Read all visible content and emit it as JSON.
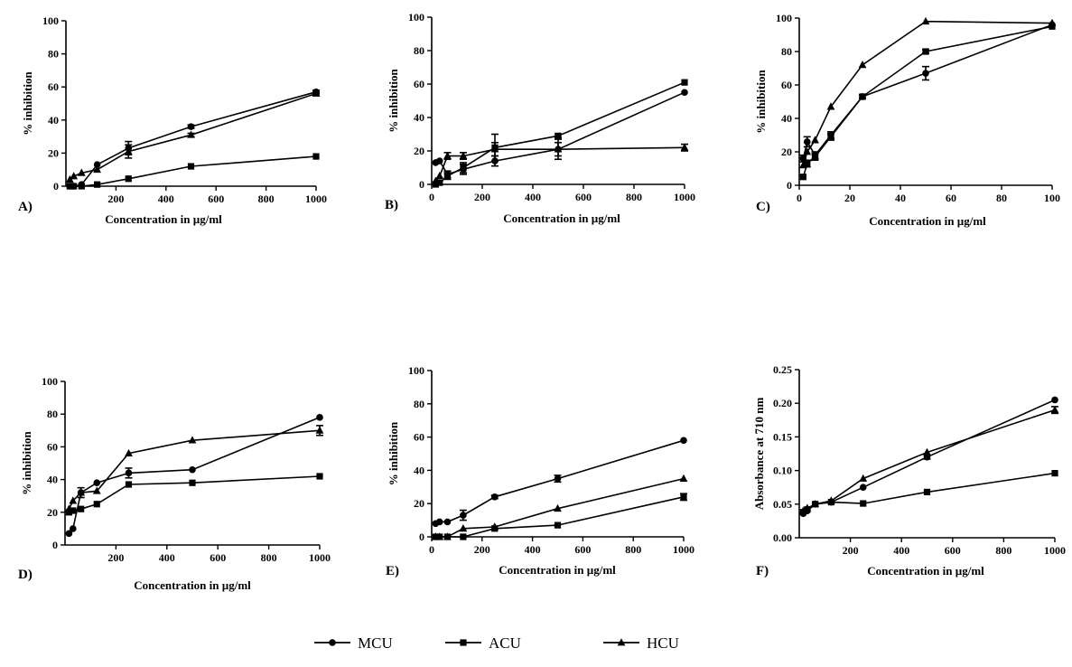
{
  "figure": {
    "legend": [
      {
        "name": "MCU",
        "marker": "circle"
      },
      {
        "name": "ACU",
        "marker": "square"
      },
      {
        "name": "HCU",
        "marker": "triangle"
      }
    ],
    "legend_position": "bottom-center",
    "colors": {
      "line": "#000000",
      "background": "#ffffff"
    }
  },
  "chart_data": [
    {
      "panel": "A)",
      "type": "line",
      "xlabel": "Concentration in µg/ml",
      "ylabel": "% inhibition",
      "xlim": [
        0,
        1000
      ],
      "ylim": [
        0,
        100
      ],
      "xticks": [
        200,
        400,
        600,
        800,
        1000
      ],
      "yticks": [
        0,
        20,
        40,
        60,
        80,
        100
      ],
      "grid": false,
      "series": [
        {
          "name": "MCU",
          "marker": "circle",
          "x": [
            15.6,
            31.25,
            62.5,
            125,
            250,
            500,
            1000
          ],
          "y": [
            0,
            0,
            1,
            13,
            23,
            36,
            57
          ],
          "err": [
            0,
            0,
            0,
            0,
            4,
            1,
            1
          ]
        },
        {
          "name": "ACU",
          "marker": "square",
          "x": [
            15.6,
            31.25,
            62.5,
            125,
            250,
            500,
            1000
          ],
          "y": [
            0,
            0,
            0,
            1,
            4.5,
            12,
            18
          ],
          "err": [
            0,
            0,
            0,
            0,
            0,
            0,
            0
          ]
        },
        {
          "name": "HCU",
          "marker": "triangle",
          "x": [
            15.6,
            31.25,
            62.5,
            125,
            250,
            500,
            1000
          ],
          "y": [
            4,
            6,
            8,
            10,
            21,
            31,
            56
          ],
          "err": [
            0,
            0,
            0,
            0,
            4,
            1,
            1
          ]
        }
      ]
    },
    {
      "panel": "B)",
      "type": "line",
      "xlabel": "Concentration in µg/ml",
      "ylabel": "% inhibition",
      "xlim": [
        0,
        1000
      ],
      "ylim": [
        0,
        100
      ],
      "xticks": [
        0,
        200,
        400,
        600,
        800,
        1000
      ],
      "yticks": [
        0,
        20,
        40,
        60,
        80,
        100
      ],
      "grid": false,
      "series": [
        {
          "name": "MCU",
          "marker": "circle",
          "x": [
            15.6,
            31.25,
            62.5,
            125,
            250,
            500,
            1000
          ],
          "y": [
            13,
            14,
            6,
            9,
            14,
            21,
            55
          ],
          "err": [
            0,
            0,
            2,
            3,
            3,
            4,
            0
          ]
        },
        {
          "name": "ACU",
          "marker": "square",
          "x": [
            15.6,
            31.25,
            62.5,
            125,
            250,
            500,
            1000
          ],
          "y": [
            0,
            1,
            5,
            10,
            22,
            29,
            61
          ],
          "err": [
            0,
            1,
            2,
            3,
            8,
            1,
            0
          ]
        },
        {
          "name": "HCU",
          "marker": "triangle",
          "x": [
            15.6,
            31.25,
            62.5,
            125,
            250,
            500,
            1000
          ],
          "y": [
            2,
            5,
            17,
            17,
            21,
            21,
            22
          ],
          "err": [
            0,
            0,
            2,
            2,
            4,
            6,
            2
          ]
        }
      ]
    },
    {
      "panel": "C)",
      "type": "line",
      "xlabel": "Concentration in µg/ml",
      "ylabel": "% inhibition",
      "xlim": [
        0,
        100
      ],
      "ylim": [
        0,
        100
      ],
      "xticks": [
        0,
        20,
        40,
        60,
        80,
        100
      ],
      "yticks": [
        0,
        20,
        40,
        60,
        80,
        100
      ],
      "grid": false,
      "series": [
        {
          "name": "MCU",
          "marker": "circle",
          "x": [
            1.56,
            3.125,
            6.25,
            12.5,
            25,
            50,
            100
          ],
          "y": [
            16,
            26,
            18,
            30,
            53,
            67,
            96
          ],
          "err": [
            2,
            3,
            2,
            2,
            1,
            4,
            0
          ]
        },
        {
          "name": "ACU",
          "marker": "square",
          "x": [
            1.56,
            3.125,
            6.25,
            12.5,
            25,
            50,
            100
          ],
          "y": [
            5,
            13,
            17,
            29,
            53,
            80,
            95
          ],
          "err": [
            0,
            2,
            2,
            2,
            1,
            1,
            0
          ]
        },
        {
          "name": "HCU",
          "marker": "triangle",
          "x": [
            1.56,
            3.125,
            6.25,
            12.5,
            25,
            50,
            100
          ],
          "y": [
            12,
            20,
            27,
            47,
            72,
            98,
            97
          ],
          "err": [
            0,
            0,
            0,
            0,
            0,
            0,
            0
          ]
        }
      ]
    },
    {
      "panel": "D)",
      "type": "line",
      "xlabel": "Concentration in µg/ml",
      "ylabel": "% inhibition",
      "xlim": [
        0,
        1000
      ],
      "ylim": [
        0,
        100
      ],
      "xticks": [
        200,
        400,
        600,
        800,
        1000
      ],
      "yticks": [
        0,
        20,
        40,
        60,
        80,
        100
      ],
      "grid": false,
      "series": [
        {
          "name": "MCU",
          "marker": "circle",
          "x": [
            15.6,
            31.25,
            62.5,
            125,
            250,
            500,
            1000
          ],
          "y": [
            7,
            10,
            32,
            38,
            44,
            46,
            78
          ],
          "err": [
            0,
            0,
            3,
            0,
            3,
            0,
            0
          ]
        },
        {
          "name": "ACU",
          "marker": "square",
          "x": [
            15.6,
            31.25,
            62.5,
            125,
            250,
            500,
            1000
          ],
          "y": [
            20,
            21,
            22,
            25,
            37,
            38,
            42
          ],
          "err": [
            0,
            0,
            0,
            0,
            0,
            0,
            0
          ]
        },
        {
          "name": "HCU",
          "marker": "triangle",
          "x": [
            15.6,
            31.25,
            62.5,
            125,
            250,
            500,
            1000
          ],
          "y": [
            22,
            27,
            32,
            33,
            56,
            64,
            70
          ],
          "err": [
            0,
            0,
            0,
            0,
            0,
            0,
            3
          ]
        }
      ]
    },
    {
      "panel": "E)",
      "type": "line",
      "xlabel": "Concentration in µg/ml",
      "ylabel": "% inhibition",
      "xlim": [
        0,
        1000
      ],
      "ylim": [
        0,
        100
      ],
      "xticks": [
        0,
        200,
        400,
        600,
        800,
        1000
      ],
      "yticks": [
        0,
        20,
        40,
        60,
        80,
        100
      ],
      "grid": false,
      "series": [
        {
          "name": "MCU",
          "marker": "circle",
          "x": [
            15.6,
            31.25,
            62.5,
            125,
            250,
            500,
            1000
          ],
          "y": [
            8,
            9,
            9,
            13,
            24,
            35,
            58
          ],
          "err": [
            0,
            0,
            0,
            3,
            1,
            2,
            0
          ]
        },
        {
          "name": "ACU",
          "marker": "square",
          "x": [
            15.6,
            31.25,
            62.5,
            125,
            250,
            500,
            1000
          ],
          "y": [
            0,
            0,
            0,
            0,
            5,
            7,
            24
          ],
          "err": [
            0,
            0,
            0,
            0,
            0,
            0,
            2
          ]
        },
        {
          "name": "HCU",
          "marker": "triangle",
          "x": [
            15.6,
            31.25,
            62.5,
            125,
            250,
            500,
            1000
          ],
          "y": [
            0,
            0,
            0,
            5,
            6,
            17,
            35
          ],
          "err": [
            0,
            0,
            0,
            0,
            0,
            0,
            0
          ]
        }
      ]
    },
    {
      "panel": "F)",
      "type": "line",
      "xlabel": "Concentration in µg/ml",
      "ylabel": "Absorbance at 710 nm",
      "xlim": [
        0,
        1000
      ],
      "ylim": [
        0,
        0.25
      ],
      "xticks": [
        200,
        400,
        600,
        800,
        1000
      ],
      "yticks": [
        0.0,
        0.05,
        0.1,
        0.15,
        0.2,
        0.25
      ],
      "ytick_labels": [
        "0.00",
        "0.05",
        "0.10",
        "0.15",
        "0.20",
        "0.25"
      ],
      "grid": false,
      "series": [
        {
          "name": "MCU",
          "marker": "circle",
          "x": [
            15.6,
            31.25,
            62.5,
            125,
            250,
            500,
            1000
          ],
          "y": [
            0.036,
            0.04,
            0.05,
            0.053,
            0.075,
            0.12,
            0.205
          ],
          "err": [
            0,
            0,
            0,
            0,
            0,
            0.003,
            0
          ]
        },
        {
          "name": "ACU",
          "marker": "square",
          "x": [
            15.6,
            31.25,
            62.5,
            125,
            250,
            500,
            1000
          ],
          "y": [
            0.038,
            0.042,
            0.05,
            0.053,
            0.051,
            0.068,
            0.096
          ],
          "err": [
            0,
            0,
            0,
            0,
            0,
            0,
            0
          ]
        },
        {
          "name": "HCU",
          "marker": "triangle",
          "x": [
            15.6,
            31.25,
            62.5,
            125,
            250,
            500,
            1000
          ],
          "y": [
            0.04,
            0.044,
            0.05,
            0.055,
            0.088,
            0.127,
            0.19
          ],
          "err": [
            0,
            0,
            0,
            0,
            0,
            0,
            0.005
          ]
        }
      ]
    }
  ]
}
